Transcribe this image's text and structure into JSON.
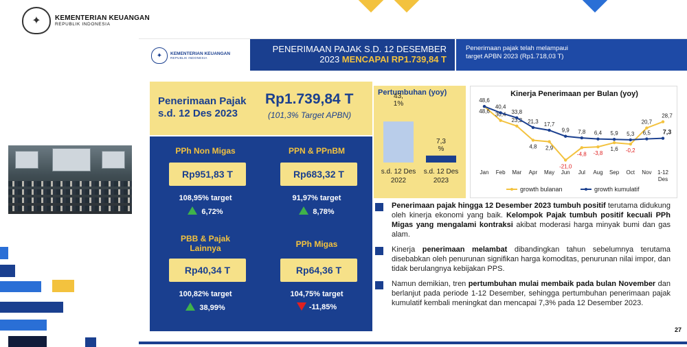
{
  "header": {
    "org_name": "KEMENTERIAN KEUANGAN",
    "org_sub": "REPUBLIK INDONESIA"
  },
  "slide": {
    "logo_name": "KEMENTERIAN KEUANGAN",
    "logo_sub": "REPUBLIK INDONESIA",
    "title_line1": "PENERIMAAN PAJAK S.D. 12 DESEMBER",
    "title_line2_a": "2023 ",
    "title_line2_b": "MENCAPAI RP1.739,84 T",
    "note_line1": "Penerimaan pajak telah melampaui",
    "note_line2": "target APBN 2023 (Rp1.718,03 T)",
    "total_label_1": "Penerimaan Pajak",
    "total_label_2": "s.d. 12 Des 2023",
    "total_value": "Rp1.739,84 T",
    "total_sub": "(101,3% Target APBN)",
    "cells": [
      {
        "name": "PPh Non Migas",
        "value": "Rp951,83 T",
        "target": "108,95% target",
        "growth": "6,72%",
        "dir": "up"
      },
      {
        "name": "PPN & PPnBM",
        "value": "Rp683,32 T",
        "target": "91,97% target",
        "growth": "8,78%",
        "dir": "up"
      },
      {
        "name_1": "PBB & Pajak",
        "name_2": "Lainnya",
        "value": "Rp40,34 T",
        "target": "100,82% target",
        "growth": "38,99%",
        "dir": "up"
      },
      {
        "name": "PPh Migas",
        "value": "Rp64,36 T",
        "target": "104,75% target",
        "growth": "-11,85%",
        "dir": "down"
      }
    ],
    "bullets": [
      {
        "bold1": "Penerimaan pajak hingga 12 Desember 2023 tumbuh positif",
        "text1": " terutama didukung oleh kinerja ekonomi yang baik. ",
        "bold2": "Kelompok Pajak tumbuh positif kecuali PPh Migas yang mengalami kontraksi",
        "text2": " akibat moderasi harga minyak bumi dan gas alam."
      },
      {
        "text0": "Kinerja ",
        "bold1": "penerimaan melambat",
        "text1": " dibandingkan tahun sebelumnya terutama disebabkan oleh penurunan signifikan harga komoditas, penurunan nilai impor, dan tidak berulangnya kebijakan PPS."
      },
      {
        "text0": "Namun demikian, tren ",
        "bold1": "pertumbuhan mulai membaik pada bulan November",
        "text1": " dan berlanjut pada periode 1-12 Desember, sehingga pertumbuhan penerimaan pajak kumulatif kembali meningkat dan mencapai 7,3% pada 12 Desember 2023."
      }
    ],
    "page_number": "27"
  },
  "colors": {
    "navy": "#1a3f8f",
    "yellow": "#f6e189",
    "gold_text": "#f3c23e",
    "light_blue_bar": "#b9cdea",
    "growth_green": "#3fb24a",
    "negative_red": "#e02020"
  },
  "icons": {
    "logo": "kemenkeu-seal-icon",
    "up": "triangle-up-icon",
    "down": "triangle-down-icon",
    "bullet": "square-bullet-icon"
  },
  "chart_data": [
    {
      "type": "bar",
      "title": "Pertumbuhan (yoy)",
      "categories": [
        "s.d. 12 Des 2022",
        "s.d. 12 Des 2023"
      ],
      "values": [
        43.1,
        7.3
      ],
      "data_labels": [
        "43,\n1%",
        "7,3\n%"
      ],
      "ylim": [
        0,
        50
      ]
    },
    {
      "type": "line",
      "title": "Kinerja Penerimaan per Bulan (yoy)",
      "categories": [
        "Jan",
        "Feb",
        "Mar",
        "Apr",
        "May",
        "Jun",
        "Jul",
        "Aug",
        "Sep",
        "Oct",
        "Nov",
        "1-12 Des"
      ],
      "series": [
        {
          "name": "growth bulanan",
          "color": "#f3c23e",
          "values": [
            48.6,
            30.4,
            23.2,
            4.8,
            2.9,
            -21.0,
            -4.8,
            -3.8,
            1.6,
            -0.2,
            20.7,
            28.7
          ],
          "labels": [
            "48,6",
            "30,4",
            "23,2",
            "4,8",
            "2,9",
            "-21,0",
            "-4,8",
            "-3,8",
            "1,6",
            "-0,2",
            "20,7",
            "28,7"
          ]
        },
        {
          "name": "growth kumulatif",
          "color": "#1a3f8f",
          "values": [
            48.6,
            40.4,
            33.8,
            21.3,
            17.7,
            9.9,
            7.8,
            6.4,
            5.9,
            5.3,
            6.5,
            7.3
          ],
          "labels": [
            "48,6",
            "40,4",
            "33,8",
            "21,3",
            "17,7",
            "9,9",
            "7,8",
            "6,4",
            "5,9",
            "5,3",
            "6,5",
            "7,3"
          ]
        }
      ],
      "ylim": [
        -25,
        55
      ],
      "legend": "bottom"
    }
  ]
}
